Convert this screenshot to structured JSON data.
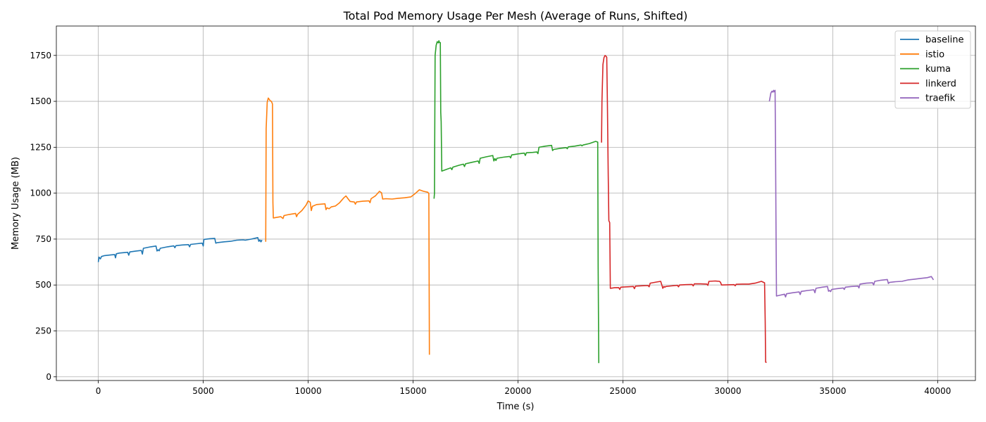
{
  "chart_data": {
    "type": "line",
    "title": "Total Pod Memory Usage Per Mesh (Average of Runs, Shifted)",
    "xlabel": "Time (s)",
    "ylabel": "Memory Usage (MB)",
    "xlim": [
      -2000,
      41800
    ],
    "ylim": [
      -20,
      1910
    ],
    "xticks": [
      0,
      5000,
      10000,
      15000,
      20000,
      25000,
      30000,
      35000,
      40000
    ],
    "yticks": [
      0,
      250,
      500,
      750,
      1000,
      1250,
      1500,
      1750
    ],
    "grid": true,
    "legend_position": "top-right",
    "series": [
      {
        "name": "baseline",
        "color": "#1f77b4",
        "points": [
          [
            0,
            625
          ],
          [
            30,
            652
          ],
          [
            100,
            642
          ],
          [
            150,
            655
          ],
          [
            300,
            660
          ],
          [
            600,
            664
          ],
          [
            780,
            666
          ],
          [
            820,
            648
          ],
          [
            860,
            670
          ],
          [
            1000,
            674
          ],
          [
            1400,
            678
          ],
          [
            1450,
            662
          ],
          [
            1500,
            680
          ],
          [
            1800,
            685
          ],
          [
            2050,
            688
          ],
          [
            2100,
            668
          ],
          [
            2150,
            700
          ],
          [
            2500,
            708
          ],
          [
            2750,
            712
          ],
          [
            2800,
            685
          ],
          [
            2850,
            692
          ],
          [
            2900,
            686
          ],
          [
            2950,
            700
          ],
          [
            3300,
            708
          ],
          [
            3600,
            713
          ],
          [
            3650,
            703
          ],
          [
            3700,
            714
          ],
          [
            4000,
            718
          ],
          [
            4300,
            720
          ],
          [
            4350,
            708
          ],
          [
            4400,
            721
          ],
          [
            4700,
            725
          ],
          [
            4950,
            728
          ],
          [
            5000,
            712
          ],
          [
            5030,
            748
          ],
          [
            5300,
            752
          ],
          [
            5550,
            754
          ],
          [
            5600,
            728
          ],
          [
            5650,
            730
          ],
          [
            6000,
            735
          ],
          [
            6300,
            738
          ],
          [
            6600,
            744
          ],
          [
            6900,
            746
          ],
          [
            7000,
            744
          ],
          [
            7300,
            750
          ],
          [
            7600,
            758
          ],
          [
            7650,
            738
          ],
          [
            7700,
            745
          ],
          [
            7750,
            735
          ],
          [
            7800,
            745
          ]
        ]
      },
      {
        "name": "istio",
        "color": "#ff7f0e",
        "points": [
          [
            7980,
            735
          ],
          [
            8000,
            1350
          ],
          [
            8050,
            1495
          ],
          [
            8100,
            1518
          ],
          [
            8150,
            1510
          ],
          [
            8200,
            1502
          ],
          [
            8250,
            1500
          ],
          [
            8300,
            1485
          ],
          [
            8320,
            950
          ],
          [
            8340,
            865
          ],
          [
            8500,
            868
          ],
          [
            8700,
            872
          ],
          [
            8800,
            862
          ],
          [
            8850,
            878
          ],
          [
            9100,
            884
          ],
          [
            9400,
            890
          ],
          [
            9450,
            872
          ],
          [
            9500,
            885
          ],
          [
            9700,
            905
          ],
          [
            9900,
            935
          ],
          [
            10000,
            958
          ],
          [
            10100,
            950
          ],
          [
            10150,
            905
          ],
          [
            10200,
            928
          ],
          [
            10400,
            938
          ],
          [
            10600,
            940
          ],
          [
            10800,
            942
          ],
          [
            10850,
            910
          ],
          [
            10900,
            920
          ],
          [
            11000,
            915
          ],
          [
            11100,
            925
          ],
          [
            11300,
            930
          ],
          [
            11500,
            948
          ],
          [
            11700,
            975
          ],
          [
            11800,
            985
          ],
          [
            11900,
            970
          ],
          [
            12000,
            955
          ],
          [
            12200,
            952
          ],
          [
            12250,
            940
          ],
          [
            12300,
            952
          ],
          [
            12600,
            956
          ],
          [
            12900,
            958
          ],
          [
            12950,
            948
          ],
          [
            13000,
            970
          ],
          [
            13200,
            985
          ],
          [
            13400,
            1010
          ],
          [
            13500,
            1002
          ],
          [
            13550,
            968
          ],
          [
            13700,
            970
          ],
          [
            14000,
            968
          ],
          [
            14300,
            972
          ],
          [
            14600,
            975
          ],
          [
            14900,
            980
          ],
          [
            15100,
            998
          ],
          [
            15300,
            1018
          ],
          [
            15500,
            1010
          ],
          [
            15700,
            1005
          ],
          [
            15750,
            998
          ],
          [
            15780,
            120
          ]
        ]
      },
      {
        "name": "kuma",
        "color": "#2ca02c",
        "points": [
          [
            16000,
            970
          ],
          [
            16020,
            1000
          ],
          [
            16050,
            1750
          ],
          [
            16100,
            1805
          ],
          [
            16150,
            1825
          ],
          [
            16200,
            1818
          ],
          [
            16230,
            1830
          ],
          [
            16260,
            1820
          ],
          [
            16300,
            1820
          ],
          [
            16320,
            1440
          ],
          [
            16340,
            1390
          ],
          [
            16370,
            1120
          ],
          [
            16600,
            1130
          ],
          [
            16800,
            1138
          ],
          [
            16850,
            1128
          ],
          [
            16900,
            1142
          ],
          [
            17200,
            1152
          ],
          [
            17400,
            1158
          ],
          [
            17450,
            1145
          ],
          [
            17500,
            1160
          ],
          [
            17800,
            1168
          ],
          [
            18100,
            1175
          ],
          [
            18150,
            1162
          ],
          [
            18200,
            1190
          ],
          [
            18500,
            1198
          ],
          [
            18800,
            1205
          ],
          [
            18850,
            1175
          ],
          [
            18900,
            1188
          ],
          [
            18950,
            1178
          ],
          [
            19000,
            1190
          ],
          [
            19300,
            1196
          ],
          [
            19600,
            1200
          ],
          [
            19650,
            1192
          ],
          [
            19700,
            1208
          ],
          [
            20000,
            1214
          ],
          [
            20300,
            1218
          ],
          [
            20350,
            1205
          ],
          [
            20400,
            1220
          ],
          [
            20700,
            1222
          ],
          [
            20900,
            1224
          ],
          [
            20950,
            1215
          ],
          [
            21000,
            1250
          ],
          [
            21300,
            1256
          ],
          [
            21600,
            1260
          ],
          [
            21650,
            1232
          ],
          [
            21700,
            1238
          ],
          [
            22000,
            1244
          ],
          [
            22300,
            1248
          ],
          [
            22350,
            1242
          ],
          [
            22400,
            1252
          ],
          [
            22700,
            1256
          ],
          [
            23000,
            1262
          ],
          [
            23050,
            1258
          ],
          [
            23100,
            1262
          ],
          [
            23400,
            1270
          ],
          [
            23700,
            1282
          ],
          [
            23800,
            1278
          ],
          [
            23820,
            600
          ],
          [
            23850,
            75
          ]
        ]
      },
      {
        "name": "linkerd",
        "color": "#d62728",
        "points": [
          [
            23980,
            1275
          ],
          [
            24000,
            1500
          ],
          [
            24050,
            1700
          ],
          [
            24100,
            1738
          ],
          [
            24150,
            1750
          ],
          [
            24200,
            1745
          ],
          [
            24230,
            1740
          ],
          [
            24260,
            1500
          ],
          [
            24300,
            1100
          ],
          [
            24330,
            850
          ],
          [
            24370,
            840
          ],
          [
            24400,
            482
          ],
          [
            24600,
            485
          ],
          [
            24800,
            486
          ],
          [
            24850,
            476
          ],
          [
            24900,
            488
          ],
          [
            25200,
            490
          ],
          [
            25500,
            492
          ],
          [
            25550,
            480
          ],
          [
            25600,
            494
          ],
          [
            25900,
            496
          ],
          [
            26200,
            497
          ],
          [
            26250,
            490
          ],
          [
            26300,
            510
          ],
          [
            26600,
            516
          ],
          [
            26800,
            520
          ],
          [
            26850,
            502
          ],
          [
            26900,
            482
          ],
          [
            26950,
            492
          ],
          [
            27000,
            488
          ],
          [
            27050,
            492
          ],
          [
            27300,
            495
          ],
          [
            27600,
            498
          ],
          [
            27650,
            490
          ],
          [
            27700,
            500
          ],
          [
            28000,
            502
          ],
          [
            28300,
            503
          ],
          [
            28350,
            495
          ],
          [
            28400,
            506
          ],
          [
            28700,
            506
          ],
          [
            29000,
            505
          ],
          [
            29050,
            498
          ],
          [
            29100,
            520
          ],
          [
            29400,
            522
          ],
          [
            29600,
            520
          ],
          [
            29650,
            515
          ],
          [
            29700,
            500
          ],
          [
            30000,
            501
          ],
          [
            30300,
            502
          ],
          [
            30350,
            496
          ],
          [
            30400,
            504
          ],
          [
            30700,
            505
          ],
          [
            31000,
            505
          ],
          [
            31300,
            510
          ],
          [
            31600,
            520
          ],
          [
            31750,
            512
          ],
          [
            31780,
            300
          ],
          [
            31800,
            80
          ],
          [
            31850,
            78
          ]
        ]
      },
      {
        "name": "traefik",
        "color": "#9467bd",
        "points": [
          [
            31980,
            1500
          ],
          [
            32050,
            1545
          ],
          [
            32100,
            1555
          ],
          [
            32150,
            1550
          ],
          [
            32180,
            1560
          ],
          [
            32220,
            1552
          ],
          [
            32250,
            1560
          ],
          [
            32270,
            1300
          ],
          [
            32290,
            900
          ],
          [
            32320,
            440
          ],
          [
            32500,
            445
          ],
          [
            32700,
            450
          ],
          [
            32750,
            435
          ],
          [
            32800,
            452
          ],
          [
            33100,
            458
          ],
          [
            33400,
            462
          ],
          [
            33450,
            448
          ],
          [
            33500,
            465
          ],
          [
            33800,
            470
          ],
          [
            34100,
            474
          ],
          [
            34150,
            458
          ],
          [
            34200,
            482
          ],
          [
            34500,
            488
          ],
          [
            34750,
            492
          ],
          [
            34800,
            466
          ],
          [
            34850,
            470
          ],
          [
            34900,
            464
          ],
          [
            34950,
            476
          ],
          [
            35200,
            480
          ],
          [
            35500,
            484
          ],
          [
            35550,
            476
          ],
          [
            35600,
            488
          ],
          [
            35900,
            492
          ],
          [
            36200,
            494
          ],
          [
            36250,
            484
          ],
          [
            36300,
            505
          ],
          [
            36600,
            510
          ],
          [
            36900,
            512
          ],
          [
            36950,
            500
          ],
          [
            37000,
            520
          ],
          [
            37300,
            526
          ],
          [
            37600,
            530
          ],
          [
            37650,
            508
          ],
          [
            37700,
            514
          ],
          [
            38000,
            518
          ],
          [
            38300,
            520
          ],
          [
            38600,
            528
          ],
          [
            38900,
            532
          ],
          [
            39200,
            536
          ],
          [
            39500,
            540
          ],
          [
            39700,
            546
          ],
          [
            39800,
            528
          ]
        ]
      }
    ]
  }
}
